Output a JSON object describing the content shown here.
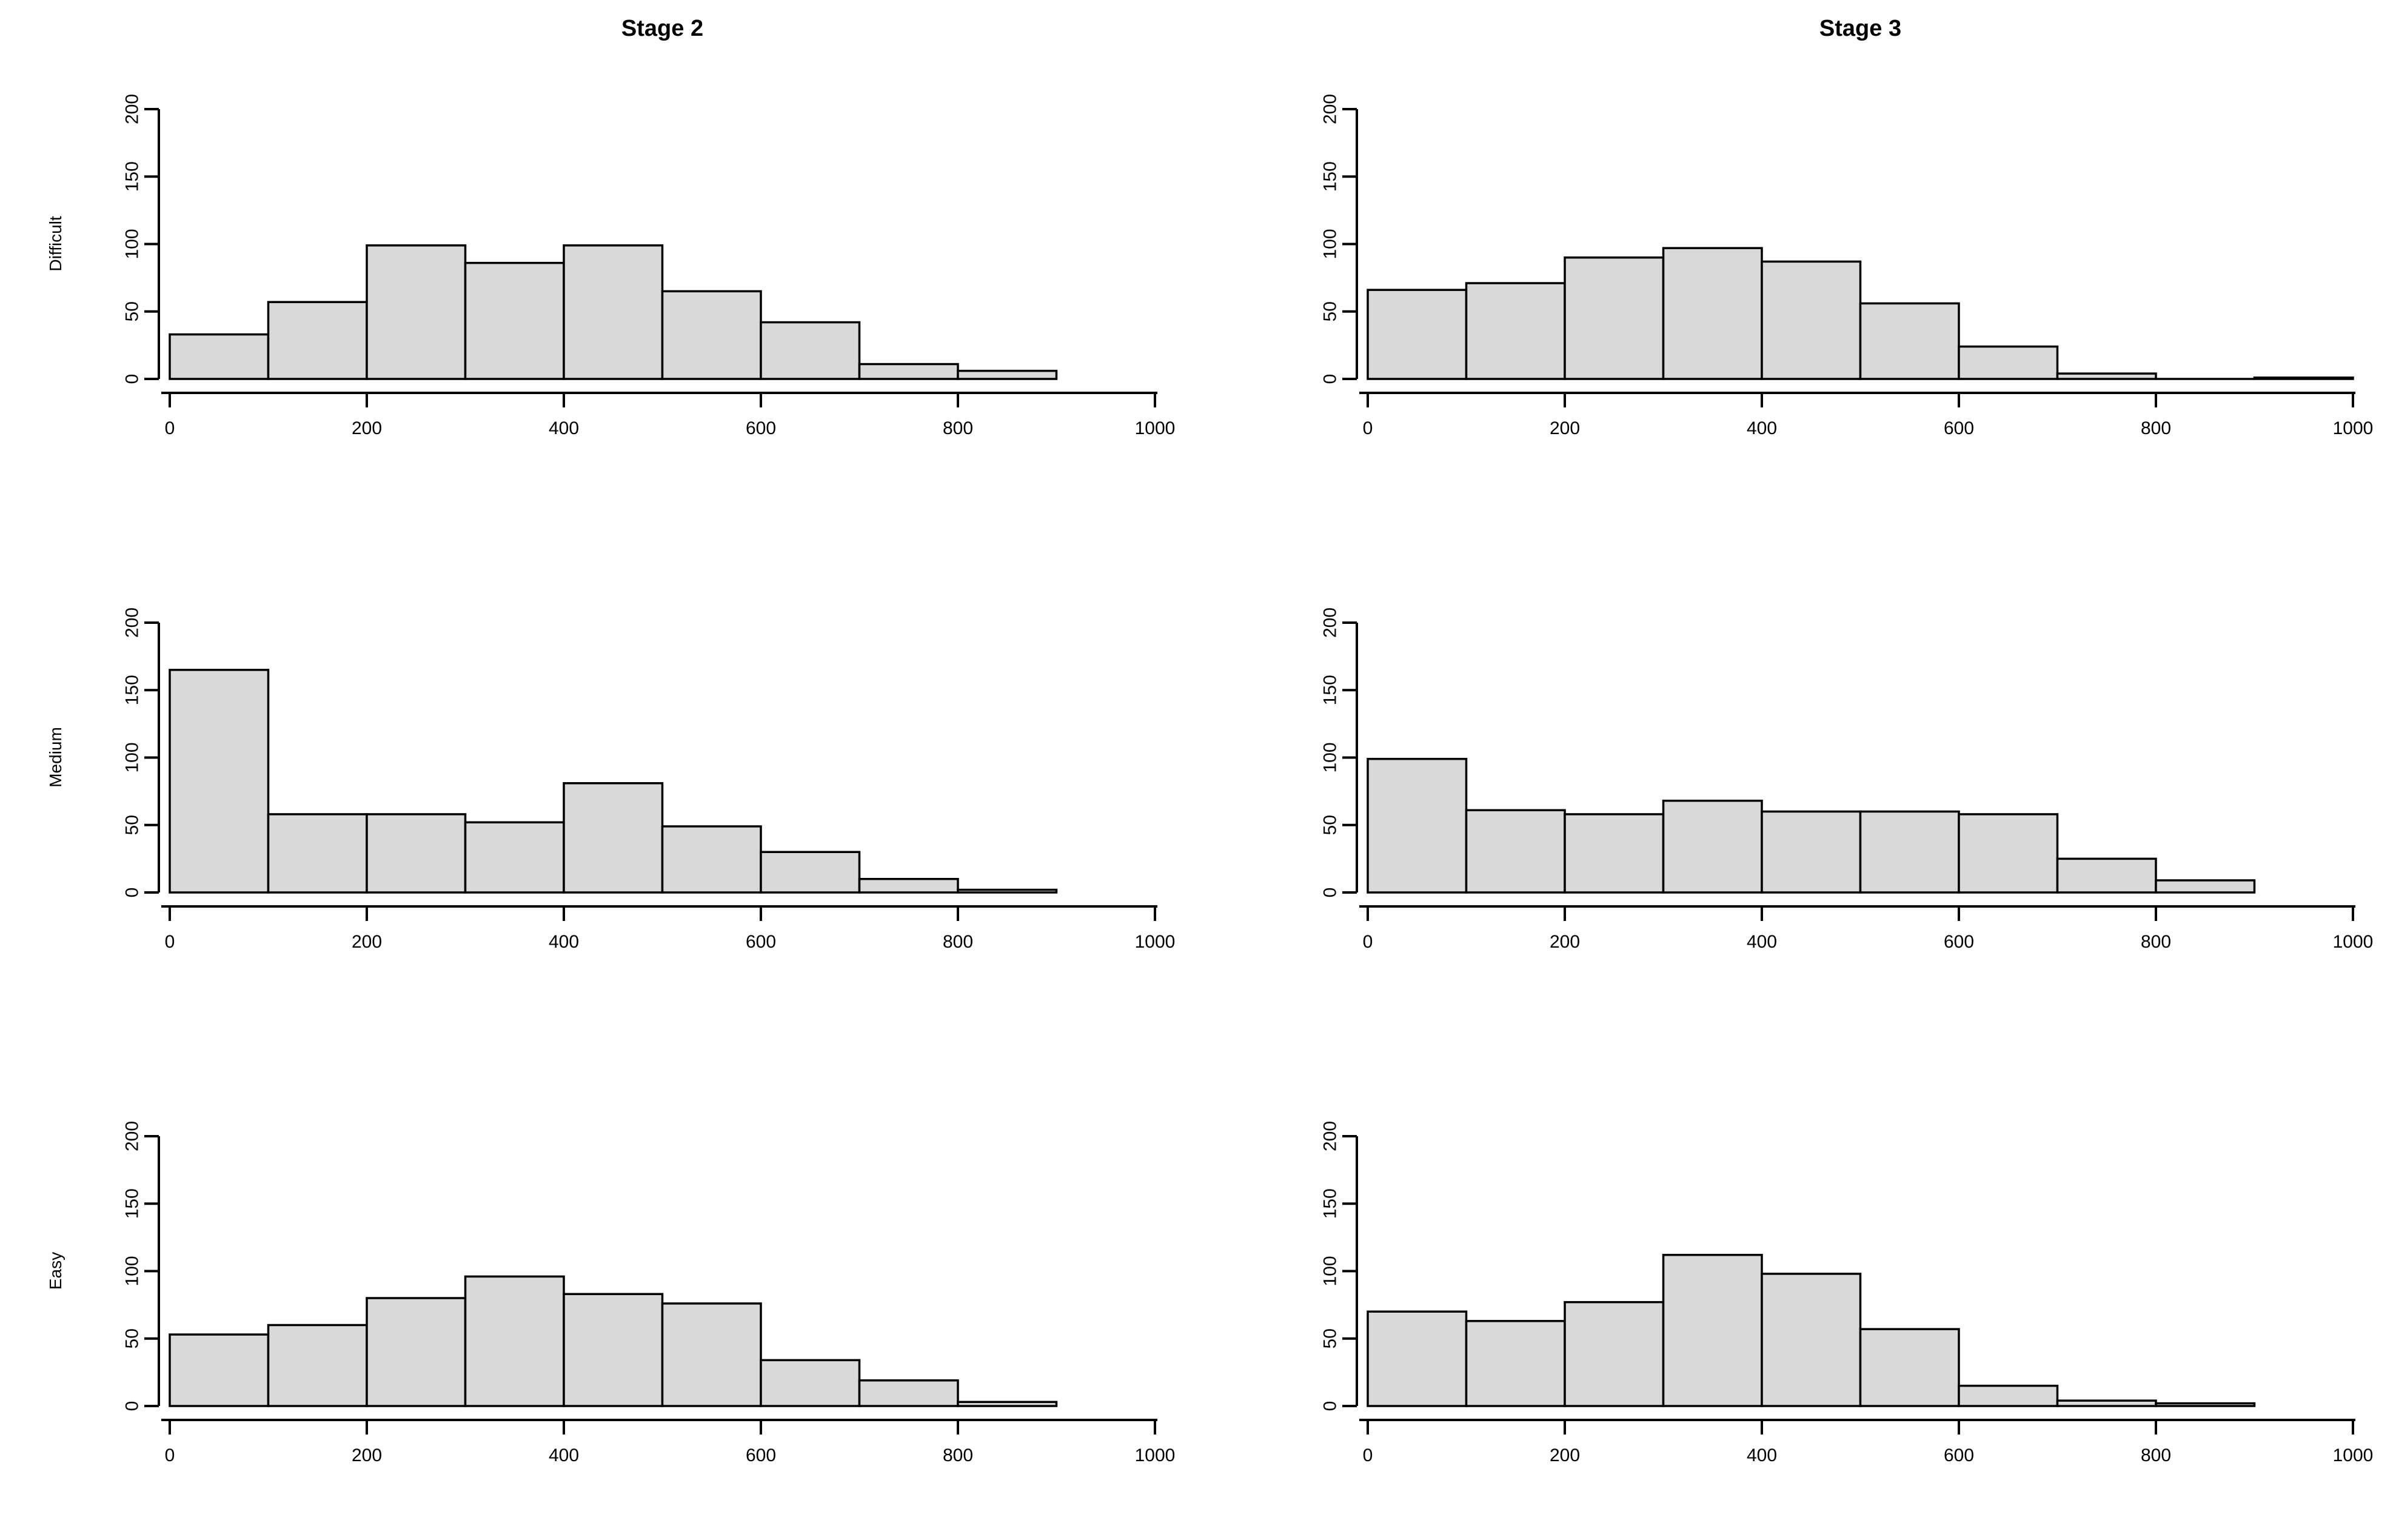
{
  "page": {
    "background": "#ffffff",
    "layout": "3 rows x 2 columns of histograms",
    "column_titles": [
      "Stage 2",
      "Stage 3"
    ],
    "row_labels": [
      "Difficult",
      "Medium",
      "Easy"
    ]
  },
  "style": {
    "bar_fill": "#d9d9d9",
    "bar_stroke": "#000000",
    "axis_color": "#000000",
    "text_color": "#000000"
  },
  "chart_data": [
    {
      "type": "bar",
      "title": "Stage 2",
      "row_label": "Difficult",
      "xlabel": "",
      "ylabel": "Difficult",
      "bin_start": 0,
      "bin_width": 100,
      "bins": [
        "0-100",
        "100-200",
        "200-300",
        "300-400",
        "400-500",
        "500-600",
        "600-700",
        "700-800",
        "800-900"
      ],
      "values": [
        33,
        57,
        99,
        86,
        99,
        65,
        42,
        11,
        6
      ],
      "xlim": [
        0,
        1000
      ],
      "ylim": [
        0,
        200
      ],
      "x_ticks": [
        0,
        200,
        400,
        600,
        800,
        1000
      ],
      "y_ticks": [
        0,
        50,
        100,
        150,
        200
      ],
      "grid": "off",
      "legend": "none"
    },
    {
      "type": "bar",
      "title": "Stage 3",
      "row_label": "",
      "xlabel": "",
      "ylabel": "",
      "bin_start": 0,
      "bin_width": 100,
      "bins": [
        "0-100",
        "100-200",
        "200-300",
        "300-400",
        "400-500",
        "500-600",
        "600-700",
        "700-800",
        "800-900",
        "900-1000"
      ],
      "values": [
        66,
        71,
        90,
        97,
        87,
        56,
        24,
        4,
        0,
        1
      ],
      "xlim": [
        0,
        1000
      ],
      "ylim": [
        0,
        200
      ],
      "x_ticks": [
        0,
        200,
        400,
        600,
        800,
        1000
      ],
      "y_ticks": [
        0,
        50,
        100,
        150,
        200
      ],
      "grid": "off",
      "legend": "none"
    },
    {
      "type": "bar",
      "title": "",
      "row_label": "Medium",
      "xlabel": "",
      "ylabel": "Medium",
      "bin_start": 0,
      "bin_width": 100,
      "bins": [
        "0-100",
        "100-200",
        "200-300",
        "300-400",
        "400-500",
        "500-600",
        "600-700",
        "700-800",
        "800-900"
      ],
      "values": [
        165,
        58,
        58,
        52,
        81,
        49,
        30,
        10,
        2
      ],
      "xlim": [
        0,
        1000
      ],
      "ylim": [
        0,
        200
      ],
      "x_ticks": [
        0,
        200,
        400,
        600,
        800,
        1000
      ],
      "y_ticks": [
        0,
        50,
        100,
        150,
        200
      ],
      "grid": "off",
      "legend": "none"
    },
    {
      "type": "bar",
      "title": "",
      "row_label": "",
      "xlabel": "",
      "ylabel": "",
      "bin_start": 0,
      "bin_width": 100,
      "bins": [
        "0-100",
        "100-200",
        "200-300",
        "300-400",
        "400-500",
        "500-600",
        "600-700",
        "700-800",
        "800-900"
      ],
      "values": [
        99,
        61,
        58,
        68,
        60,
        60,
        58,
        25,
        9
      ],
      "xlim": [
        0,
        1000
      ],
      "ylim": [
        0,
        200
      ],
      "x_ticks": [
        0,
        200,
        400,
        600,
        800,
        1000
      ],
      "y_ticks": [
        0,
        50,
        100,
        150,
        200
      ],
      "grid": "off",
      "legend": "none"
    },
    {
      "type": "bar",
      "title": "",
      "row_label": "Easy",
      "xlabel": "",
      "ylabel": "Easy",
      "bin_start": 0,
      "bin_width": 100,
      "bins": [
        "0-100",
        "100-200",
        "200-300",
        "300-400",
        "400-500",
        "500-600",
        "600-700",
        "700-800",
        "800-900"
      ],
      "values": [
        53,
        60,
        80,
        96,
        83,
        76,
        34,
        19,
        3
      ],
      "xlim": [
        0,
        1000
      ],
      "ylim": [
        0,
        200
      ],
      "x_ticks": [
        0,
        200,
        400,
        600,
        800,
        1000
      ],
      "y_ticks": [
        0,
        50,
        100,
        150,
        200
      ],
      "grid": "off",
      "legend": "none"
    },
    {
      "type": "bar",
      "title": "",
      "row_label": "",
      "xlabel": "",
      "ylabel": "",
      "bin_start": 0,
      "bin_width": 100,
      "bins": [
        "0-100",
        "100-200",
        "200-300",
        "300-400",
        "400-500",
        "500-600",
        "600-700",
        "700-800",
        "800-900"
      ],
      "values": [
        70,
        63,
        77,
        112,
        98,
        57,
        15,
        4,
        2
      ],
      "xlim": [
        0,
        1000
      ],
      "ylim": [
        0,
        200
      ],
      "x_ticks": [
        0,
        200,
        400,
        600,
        800,
        1000
      ],
      "y_ticks": [
        0,
        50,
        100,
        150,
        200
      ],
      "grid": "off",
      "legend": "none"
    }
  ]
}
